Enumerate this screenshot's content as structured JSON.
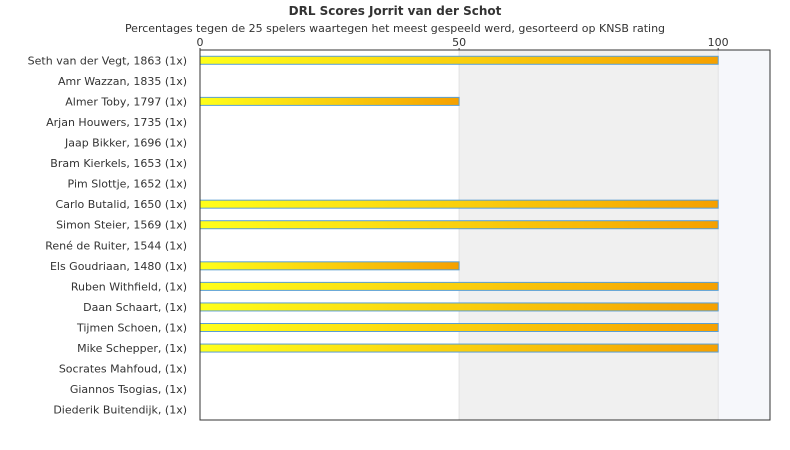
{
  "chart_data": {
    "type": "bar",
    "orientation": "horizontal",
    "title": "DRL Scores Jorrit van der Schot",
    "subtitle": "Percentages tegen de 25 spelers waartegen het meest gespeeld werd, gesorteerd op KNSB rating",
    "xlim": [
      0,
      110
    ],
    "xticks": [
      0,
      50,
      100
    ],
    "categories": [
      "Seth van der Vegt, 1863 (1x)",
      "Amr Wazzan, 1835 (1x)",
      "Almer Toby, 1797 (1x)",
      "Arjan Houwers, 1735 (1x)",
      "Jaap Bikker, 1696 (1x)",
      "Bram Kierkels, 1653 (1x)",
      "Pim Slottje, 1652 (1x)",
      "Carlo Butalid, 1650 (1x)",
      "Simon Steier, 1569 (1x)",
      "René de Ruiter, 1544 (1x)",
      "Els Goudriaan, 1480 (1x)",
      "Ruben Withfield,  (1x)",
      "Daan Schaart,  (1x)",
      "Tijmen Schoen,  (1x)",
      "Mike Schepper,  (1x)",
      "Socrates Mahfoud,  (1x)",
      "Giannos Tsogias,  (1x)",
      "Diederik Buitendijk,  (1x)"
    ],
    "values": [
      100,
      0,
      50,
      0,
      0,
      0,
      0,
      100,
      100,
      0,
      50,
      100,
      100,
      100,
      100,
      0,
      0,
      0
    ],
    "colors": {
      "bar_start": "#ffff1a",
      "bar_end": "#f5a000",
      "bar_border": "#5a9fd4",
      "band_50_100": "#f0f0f0",
      "band_100_plus": "#f6f7fb",
      "frame": "#333333"
    }
  }
}
